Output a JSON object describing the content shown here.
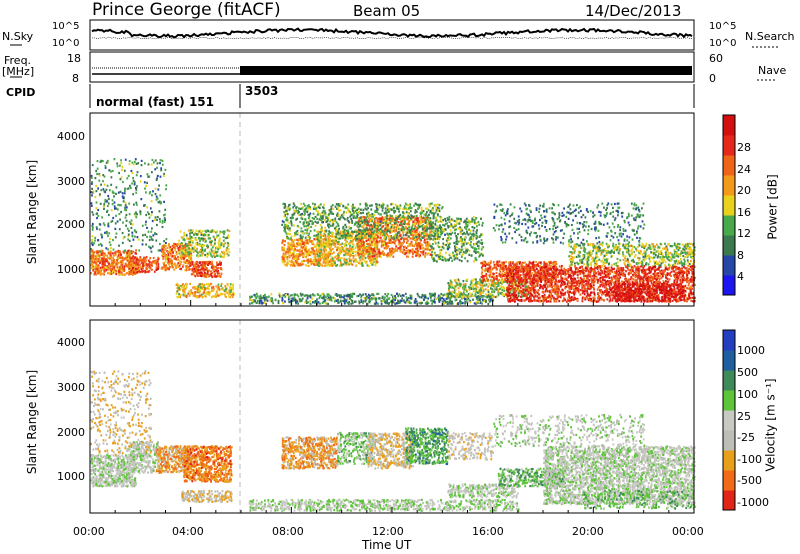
{
  "header": {
    "station": "Prince George (fitACF)",
    "beam": "Beam 05",
    "date": "14/Dec/2013"
  },
  "strips": {
    "nsky": {
      "label": "N.Sky",
      "top_tick": "10^5",
      "bottom_tick": "10^0"
    },
    "nsearch": {
      "label": "N.Search",
      "top_tick": "10^5",
      "bottom_tick": "10^0"
    },
    "freq": {
      "label_1": "Freq.",
      "label_2": "[MHz]",
      "top_tick": "18",
      "bottom_tick": "8"
    },
    "nave": {
      "label": "Nave",
      "top_tick": "60",
      "bottom_tick": "0"
    },
    "cpid": {
      "label": "CPID",
      "mode_1": "normal (fast) 151",
      "mode_2": "3503"
    }
  },
  "axes": {
    "ylabel": "Slant Range [km]",
    "yticks": [
      "1000",
      "2000",
      "3000",
      "4000"
    ],
    "xlabel": "Time UT",
    "xticks": [
      "00:00",
      "04:00",
      "08:00",
      "12:00",
      "16:00",
      "20:00",
      "00:00"
    ]
  },
  "colorbars": {
    "power": {
      "label": "Power [dB]",
      "ticks": [
        "4",
        "8",
        "12",
        "16",
        "20",
        "24",
        "28"
      ],
      "colors": [
        "#1c16f0",
        "#2747a8",
        "#3a7a4e",
        "#49a84a",
        "#e9d21e",
        "#f39a1c",
        "#f06418",
        "#e6281c",
        "#d40f10"
      ]
    },
    "velocity": {
      "label": "Velocity [m s⁻¹]",
      "ticks": [
        "1000",
        "500",
        "100",
        "25",
        "-25",
        "-100",
        "-500",
        "-1000"
      ],
      "colors": [
        "#233fbf",
        "#1f5fa0",
        "#3f8a58",
        "#5ec43a",
        "#c9c9c4",
        "#bebeb8",
        "#e8a01c",
        "#f06a18",
        "#e02418"
      ]
    }
  },
  "chart_data": [
    {
      "type": "heatmap",
      "panel": "power",
      "x_unit": "hours UT",
      "xlim": [
        0,
        24
      ],
      "y_unit": "km",
      "ylim": [
        180,
        4500
      ],
      "xlabel": "Time UT",
      "ylabel": "Slant Range [km]",
      "colorbar_label": "Power [dB]",
      "colorbar_range": [
        0,
        32
      ],
      "blobs": [
        {
          "t0": 0.0,
          "t1": 1.8,
          "r0": 900,
          "r1": 1450,
          "val": 22,
          "d": 0.85
        },
        {
          "t0": 1.5,
          "t1": 2.7,
          "r0": 950,
          "r1": 1300,
          "val": 24,
          "d": 0.75
        },
        {
          "t0": 2.8,
          "t1": 4.0,
          "r0": 1000,
          "r1": 1600,
          "val": 22,
          "d": 0.7
        },
        {
          "t0": 4.0,
          "t1": 5.2,
          "r0": 850,
          "r1": 1200,
          "val": 25,
          "d": 0.85
        },
        {
          "t0": 3.5,
          "t1": 5.5,
          "r0": 1300,
          "r1": 1900,
          "val": 14,
          "d": 0.45
        },
        {
          "t0": 3.4,
          "t1": 5.7,
          "r0": 400,
          "r1": 700,
          "val": 18,
          "d": 0.6
        },
        {
          "t0": 0.0,
          "t1": 3.0,
          "r0": 1400,
          "r1": 3500,
          "val": 10,
          "d": 0.12
        },
        {
          "t0": 7.6,
          "t1": 9.6,
          "r0": 1100,
          "r1": 1700,
          "val": 20,
          "d": 0.65
        },
        {
          "t0": 9.0,
          "t1": 11.4,
          "r0": 1100,
          "r1": 1900,
          "val": 17,
          "d": 0.55
        },
        {
          "t0": 10.6,
          "t1": 13.5,
          "r0": 1300,
          "r1": 2200,
          "val": 22,
          "d": 0.6
        },
        {
          "t0": 7.6,
          "t1": 14.0,
          "r0": 1700,
          "r1": 2500,
          "val": 12,
          "d": 0.35
        },
        {
          "t0": 6.3,
          "t1": 16.0,
          "r0": 250,
          "r1": 480,
          "val": 10,
          "d": 0.5
        },
        {
          "t0": 13.5,
          "t1": 15.6,
          "r0": 1200,
          "r1": 2200,
          "val": 12,
          "d": 0.35
        },
        {
          "t0": 14.2,
          "t1": 17.4,
          "r0": 400,
          "r1": 800,
          "val": 14,
          "d": 0.55
        },
        {
          "t0": 15.5,
          "t1": 18.5,
          "r0": 750,
          "r1": 1200,
          "val": 24,
          "d": 0.7
        },
        {
          "t0": 16.5,
          "t1": 24.0,
          "r0": 300,
          "r1": 1100,
          "val": 26,
          "d": 0.65
        },
        {
          "t0": 19.0,
          "t1": 24.0,
          "r0": 1100,
          "r1": 1600,
          "val": 14,
          "d": 0.45
        },
        {
          "t0": 16.0,
          "t1": 22.0,
          "r0": 1600,
          "r1": 2500,
          "val": 9,
          "d": 0.15
        },
        {
          "t0": 20.8,
          "t1": 23.6,
          "r0": 300,
          "r1": 700,
          "val": 29,
          "d": 0.75
        }
      ]
    },
    {
      "type": "heatmap",
      "panel": "velocity",
      "x_unit": "hours UT",
      "xlim": [
        0,
        24
      ],
      "y_unit": "km",
      "ylim": [
        180,
        4500
      ],
      "xlabel": "Time UT",
      "ylabel": "Slant Range [km]",
      "colorbar_label": "Velocity [m s⁻¹]",
      "colorbar_range": [
        -1000,
        1000
      ],
      "blobs": [
        {
          "t0": 0.0,
          "t1": 1.8,
          "r0": 800,
          "r1": 1500,
          "val": 0,
          "d": 0.85
        },
        {
          "t0": 1.5,
          "t1": 2.7,
          "r0": 1100,
          "r1": 1800,
          "val": -10,
          "d": 0.7
        },
        {
          "t0": 0.0,
          "t1": 2.4,
          "r0": 1500,
          "r1": 3400,
          "val": -300,
          "d": 0.15
        },
        {
          "t0": 2.6,
          "t1": 4.0,
          "r0": 1100,
          "r1": 1700,
          "val": -450,
          "d": 0.8
        },
        {
          "t0": 3.7,
          "t1": 5.6,
          "r0": 900,
          "r1": 1700,
          "val": -600,
          "d": 0.8
        },
        {
          "t0": 3.6,
          "t1": 5.6,
          "r0": 450,
          "r1": 700,
          "val": -300,
          "d": 0.7
        },
        {
          "t0": 6.3,
          "t1": 17.0,
          "r0": 250,
          "r1": 500,
          "val": 60,
          "d": 0.55
        },
        {
          "t0": 7.6,
          "t1": 9.8,
          "r0": 1200,
          "r1": 1900,
          "val": -450,
          "d": 0.7
        },
        {
          "t0": 9.8,
          "t1": 11.2,
          "r0": 1300,
          "r1": 2000,
          "val": 150,
          "d": 0.55
        },
        {
          "t0": 11.0,
          "t1": 12.8,
          "r0": 1200,
          "r1": 2000,
          "val": -300,
          "d": 0.6
        },
        {
          "t0": 12.5,
          "t1": 14.2,
          "r0": 1300,
          "r1": 2100,
          "val": 350,
          "d": 0.6
        },
        {
          "t0": 14.2,
          "t1": 16.0,
          "r0": 1400,
          "r1": 2000,
          "val": -200,
          "d": 0.35
        },
        {
          "t0": 14.2,
          "t1": 17.0,
          "r0": 550,
          "r1": 850,
          "val": 60,
          "d": 0.6
        },
        {
          "t0": 16.2,
          "t1": 18.8,
          "r0": 800,
          "r1": 1200,
          "val": 250,
          "d": 0.65
        },
        {
          "t0": 18.0,
          "t1": 24.0,
          "r0": 400,
          "r1": 1700,
          "val": 0,
          "d": 0.7
        },
        {
          "t0": 19.5,
          "t1": 24.0,
          "r0": 300,
          "r1": 700,
          "val": 200,
          "d": 0.4
        },
        {
          "t0": 16.0,
          "t1": 22.0,
          "r0": 1700,
          "r1": 2400,
          "val": 0,
          "d": 0.2
        }
      ]
    }
  ]
}
